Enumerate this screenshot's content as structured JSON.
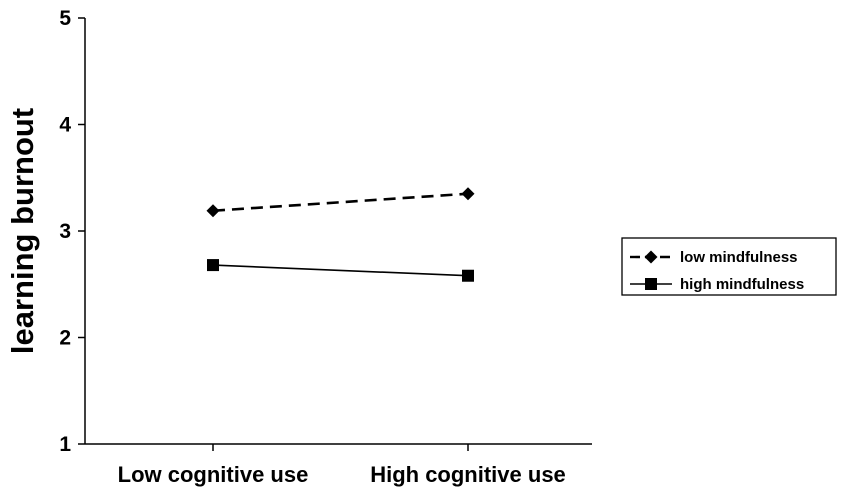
{
  "chart_data": {
    "type": "line",
    "categories": [
      "Low cognitive use",
      "High cognitive use"
    ],
    "series": [
      {
        "name": "low mindfulness",
        "values": [
          3.19,
          3.35
        ],
        "line_style": "dashed",
        "marker": "diamond",
        "color": "#000000"
      },
      {
        "name": "high mindfulness",
        "values": [
          2.68,
          2.58
        ],
        "line_style": "solid",
        "marker": "square",
        "color": "#000000"
      }
    ],
    "title": "",
    "xlabel": "",
    "ylabel": "learning burnout",
    "ylim": [
      1,
      5
    ],
    "yticks": [
      "1",
      "2",
      "3",
      "4",
      "5"
    ],
    "grid": false,
    "legend_position": "right"
  }
}
